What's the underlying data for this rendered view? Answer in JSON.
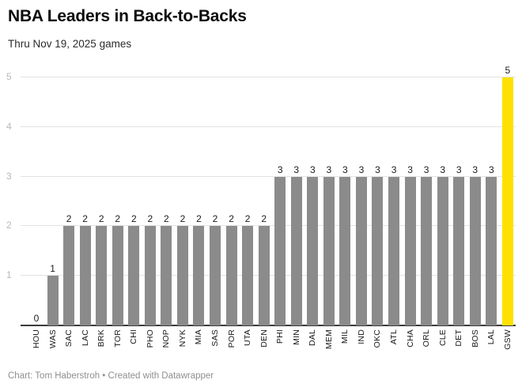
{
  "header": {
    "title": "NBA Leaders in Back-to-Backs",
    "subtitle": "Thru Nov 19, 2025 games"
  },
  "footer": {
    "credit": "Chart: Tom Haberstroh • Created with Datawrapper"
  },
  "chart_data": {
    "type": "bar",
    "title": "NBA Leaders in Back-to-Backs",
    "subtitle": "Thru Nov 19, 2025 games",
    "categories": [
      "HOU",
      "WAS",
      "SAC",
      "LAC",
      "BRK",
      "TOR",
      "CHI",
      "PHO",
      "NOP",
      "NYK",
      "MIA",
      "SAS",
      "POR",
      "UTA",
      "DEN",
      "PHI",
      "MIN",
      "DAL",
      "MEM",
      "MIL",
      "IND",
      "OKC",
      "ATL",
      "CHA",
      "ORL",
      "CLE",
      "DET",
      "BOS",
      "LAL",
      "GSW"
    ],
    "values": [
      0,
      1,
      2,
      2,
      2,
      2,
      2,
      2,
      2,
      2,
      2,
      2,
      2,
      2,
      2,
      3,
      3,
      3,
      3,
      3,
      3,
      3,
      3,
      3,
      3,
      3,
      3,
      3,
      3,
      5
    ],
    "bar_value_labels": true,
    "xlabel": "",
    "ylabel": "",
    "ylim": [
      0,
      5
    ],
    "yticks": [
      1,
      2,
      3,
      4,
      5
    ],
    "grid": true,
    "legend": "none",
    "highlight_category": "GSW",
    "colors": {
      "bar_default": "#8b8b8b",
      "bar_highlight": "#ffe000",
      "gridline": "#e2e2e2",
      "baseline": "#3b3b3b",
      "y_tick_label": "#b9b9b9",
      "value_label": "#1a1a1a",
      "category_label": "#1a1a1a"
    }
  }
}
